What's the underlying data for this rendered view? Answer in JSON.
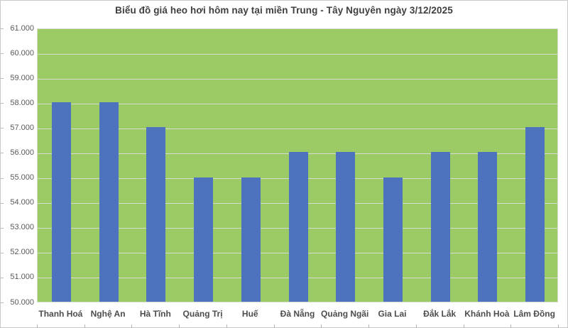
{
  "chart_data": {
    "type": "bar",
    "title": "Biểu đồ giá heo hơi hôm nay tại miền Trung - Tây Nguyên ngày 3/12/2025",
    "categories": [
      "Thanh Hoá",
      "Nghệ An",
      "Hà Tĩnh",
      "Quảng Trị",
      "Huế",
      "Đà Nẵng",
      "Quảng Ngãi",
      "Gia Lai",
      "Đắk Lắk",
      "Khánh Hoà",
      "Lâm Đồng"
    ],
    "values": [
      58000,
      58000,
      57000,
      55000,
      55000,
      56000,
      56000,
      55000,
      56000,
      56000,
      57000
    ],
    "xlabel": "",
    "ylabel": "",
    "ylim": [
      50000,
      61000
    ],
    "ytick_step": 1000,
    "ytick_labels": [
      "50.000",
      "51.000",
      "52.000",
      "53.000",
      "54.000",
      "55.000",
      "56.000",
      "57.000",
      "58.000",
      "59.000",
      "60.000",
      "61.000"
    ],
    "grid": "horizontal",
    "legend": "none",
    "colors": {
      "bar": "#4e73be",
      "plot_background": "#9ccb65",
      "gridline": "#d6dcd2",
      "outer_background": "#ffffff",
      "border": "#c9c9c9",
      "title_text": "#3f3f3f",
      "axis_text": "#595959",
      "category_text": "#4d4d4d",
      "tick_mark": "#b9b9b9"
    }
  }
}
